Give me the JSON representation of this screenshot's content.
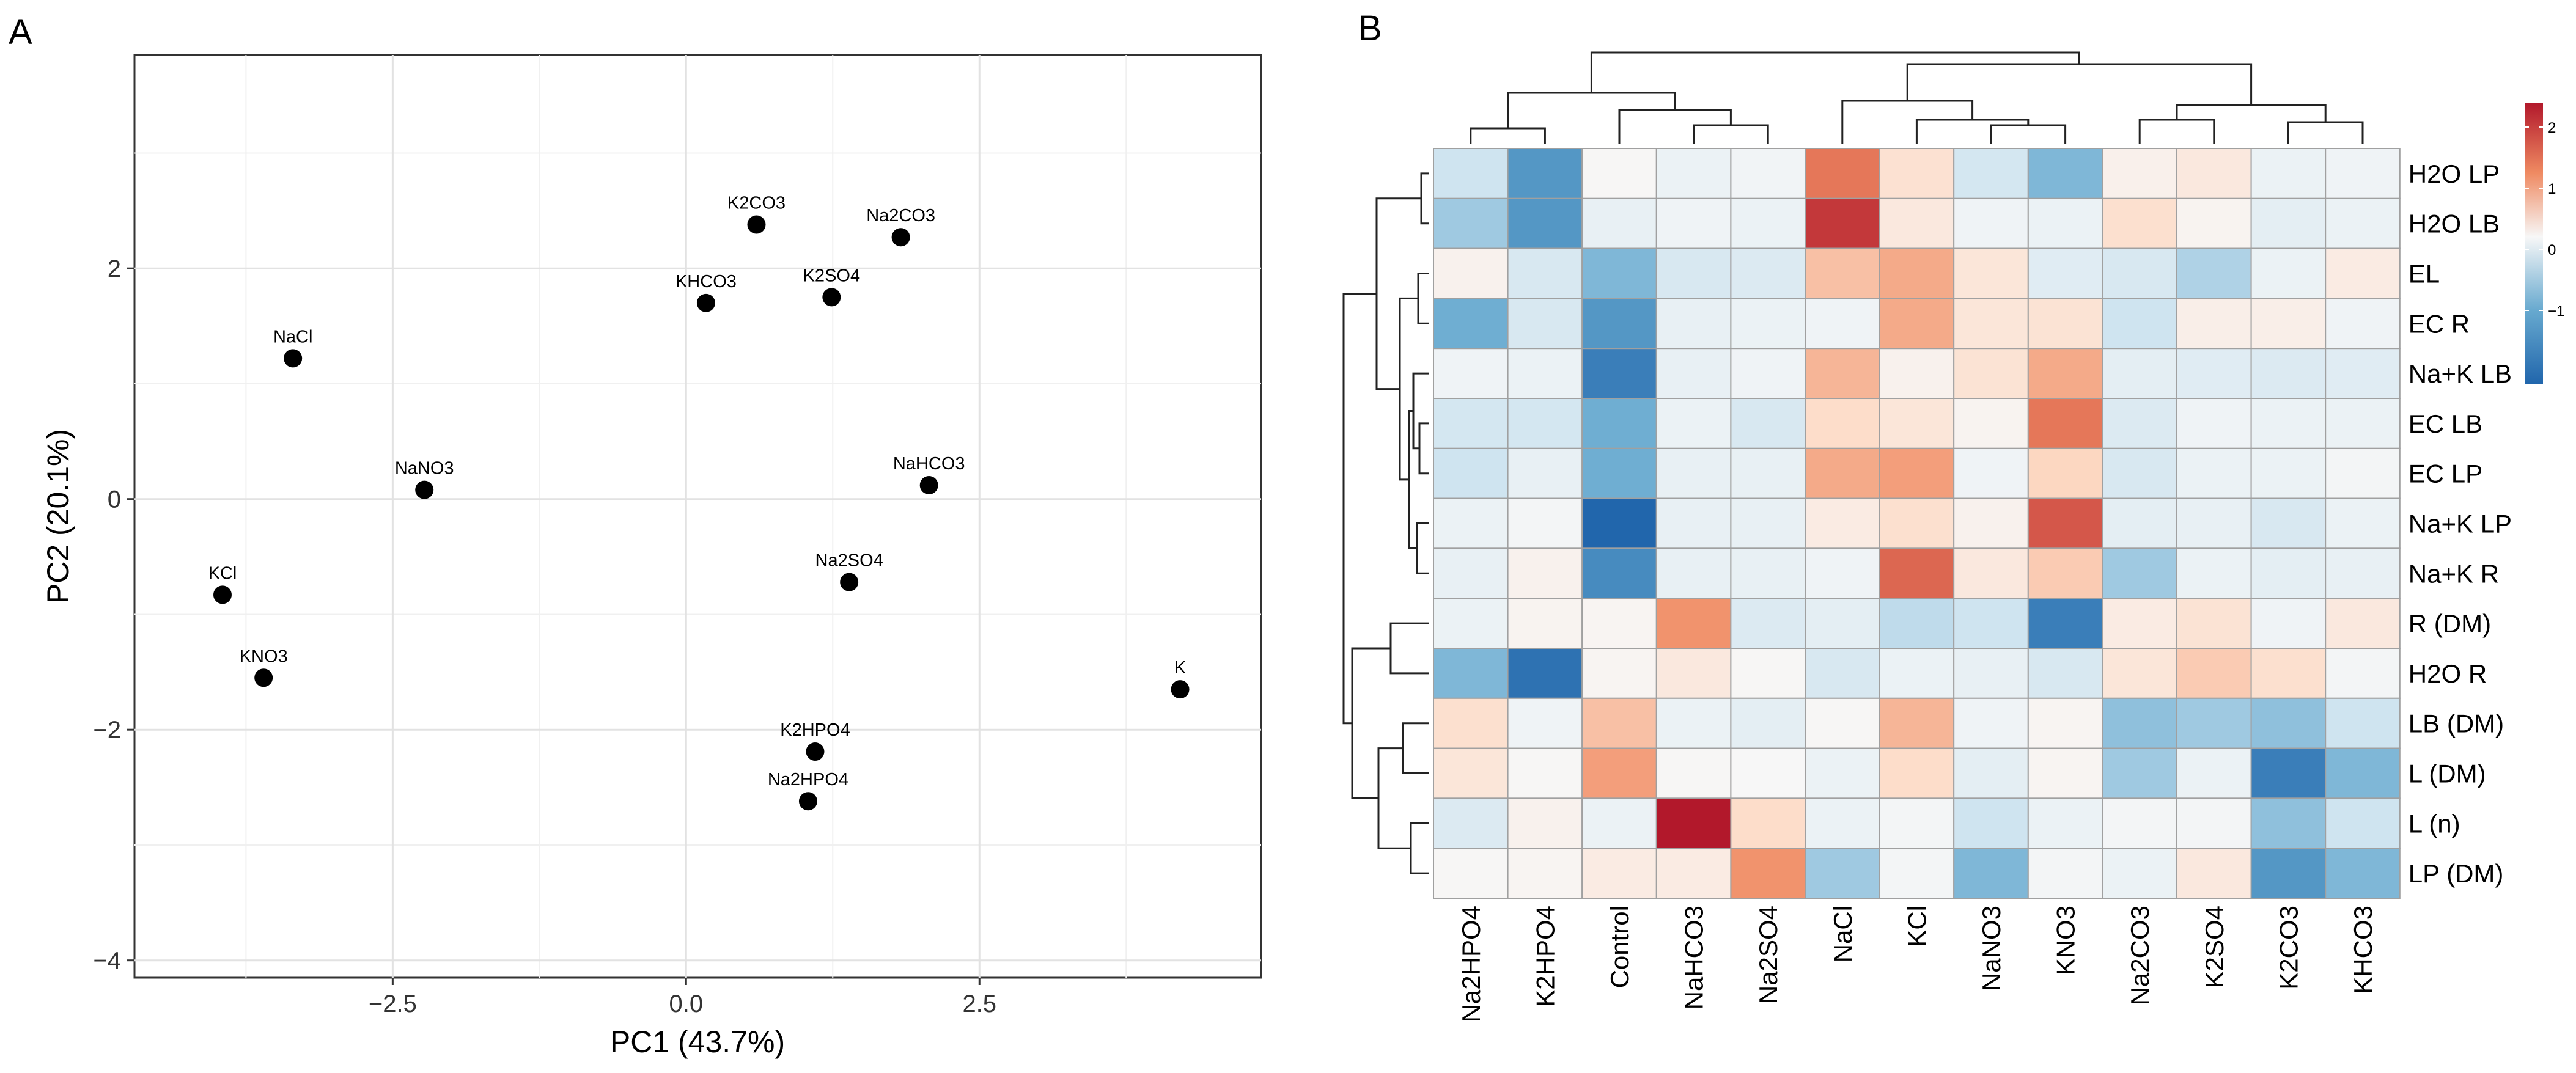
{
  "chart_data": [
    {
      "type": "scatter",
      "panel_label": "A",
      "title": "",
      "xlabel": "PC1 (43.7%)",
      "ylabel": "PC2 (20.1%)",
      "xlim": [
        -4.7,
        4.9
      ],
      "ylim": [
        -4.15,
        3.85
      ],
      "xticks": [
        -2.5,
        0.0,
        2.5
      ],
      "xtick_labels": [
        "−2.5",
        "0.0",
        "2.5"
      ],
      "yticks": [
        -4,
        -2,
        0,
        2
      ],
      "ytick_labels": [
        "−4",
        "−2",
        "0",
        "2"
      ],
      "grid": true,
      "points": [
        {
          "label": "K2CO3",
          "x": 0.6,
          "y": 2.38
        },
        {
          "label": "Na2CO3",
          "x": 1.83,
          "y": 2.27
        },
        {
          "label": "KHCO3",
          "x": 0.17,
          "y": 1.7
        },
        {
          "label": "K2SO4",
          "x": 1.24,
          "y": 1.75
        },
        {
          "label": "NaCl",
          "x": -3.35,
          "y": 1.22
        },
        {
          "label": "NaNO3",
          "x": -2.23,
          "y": 0.08
        },
        {
          "label": "NaHCO3",
          "x": 2.07,
          "y": 0.12
        },
        {
          "label": "KCl",
          "x": -3.95,
          "y": -0.83
        },
        {
          "label": "Na2SO4",
          "x": 1.39,
          "y": -0.72
        },
        {
          "label": "KNO3",
          "x": -3.6,
          "y": -1.55
        },
        {
          "label": "K",
          "x": 4.21,
          "y": -1.65
        },
        {
          "label": "K2HPO4",
          "x": 1.1,
          "y": -2.19
        },
        {
          "label": "Na2HPO4",
          "x": 1.04,
          "y": -2.62
        }
      ]
    },
    {
      "type": "heatmap",
      "panel_label": "B",
      "title": "",
      "columns": [
        "Na2HPO4",
        "K2HPO4",
        "Control",
        "NaHCO3",
        "Na2SO4",
        "NaCl",
        "KCl",
        "NaNO3",
        "KNO3",
        "Na2CO3",
        "K2SO4",
        "K2CO3",
        "KHCO3"
      ],
      "rows": [
        "H2O LP",
        "H2O LB",
        "EL",
        "EC R",
        "Na+K LB",
        "EC LB",
        "EC LP",
        "Na+K LP",
        "Na+K R",
        "R (DM)",
        "H2O R",
        "LB (DM)",
        "L (DM)",
        "L (n)",
        "LP (DM)"
      ],
      "values": [
        [
          -1.0,
          -1.8,
          0.05,
          -0.3,
          -0.15,
          1.8,
          0.75,
          -0.9,
          -1.5,
          0.25,
          0.5,
          -0.3,
          -0.2
        ],
        [
          -1.3,
          -1.8,
          -0.4,
          -0.2,
          -0.3,
          2.2,
          0.5,
          -0.2,
          -0.3,
          0.8,
          0.15,
          -0.5,
          -0.3
        ],
        [
          0.2,
          -0.8,
          -1.5,
          -0.8,
          -0.7,
          1.2,
          1.4,
          0.6,
          -0.6,
          -0.8,
          -1.2,
          -0.3,
          0.4
        ],
        [
          -1.6,
          -0.8,
          -1.8,
          -0.4,
          -0.3,
          -0.2,
          1.4,
          0.6,
          0.7,
          -1.0,
          0.3,
          0.3,
          -0.2
        ],
        [
          -0.2,
          -0.3,
          -2.0,
          -0.4,
          -0.2,
          1.3,
          0.2,
          0.7,
          1.4,
          -0.5,
          -0.6,
          -0.7,
          -0.6
        ],
        [
          -0.9,
          -0.9,
          -1.6,
          -0.3,
          -0.8,
          0.9,
          0.6,
          0.15,
          1.8,
          -0.7,
          -0.2,
          -0.3,
          -0.3
        ],
        [
          -1.0,
          -0.4,
          -1.6,
          -0.4,
          -0.4,
          1.4,
          1.5,
          -0.2,
          1.0,
          -0.8,
          -0.3,
          -0.3,
          -0.1
        ],
        [
          -0.3,
          -0.1,
          -2.2,
          -0.4,
          -0.4,
          0.4,
          0.8,
          0.2,
          2.0,
          -0.5,
          -0.4,
          -0.8,
          -0.3
        ],
        [
          -0.4,
          0.2,
          -1.9,
          -0.4,
          -0.4,
          -0.2,
          1.9,
          0.5,
          1.1,
          -1.3,
          -0.3,
          -0.5,
          -0.4
        ],
        [
          -0.3,
          0.15,
          0.1,
          1.6,
          -0.7,
          -0.5,
          -1.1,
          -1.0,
          -2.0,
          0.4,
          0.7,
          -0.2,
          0.5
        ],
        [
          -1.5,
          -2.1,
          0.1,
          0.5,
          0.05,
          -0.8,
          -0.3,
          -0.4,
          -0.8,
          0.6,
          1.1,
          0.8,
          -0.1
        ],
        [
          0.8,
          -0.2,
          1.2,
          -0.3,
          -0.5,
          0.05,
          1.3,
          -0.2,
          0.1,
          -1.4,
          -1.3,
          -1.4,
          -1.0
        ],
        [
          0.6,
          0.05,
          1.5,
          0.05,
          0.0,
          -0.3,
          0.9,
          -0.5,
          0.1,
          -1.3,
          -0.3,
          -2.0,
          -1.5
        ],
        [
          -0.7,
          0.2,
          -0.3,
          2.6,
          0.9,
          -0.3,
          -0.1,
          -1.0,
          -0.3,
          -0.1,
          -0.1,
          -1.4,
          -1.0
        ],
        [
          0.05,
          0.1,
          0.4,
          0.4,
          1.6,
          -1.3,
          -0.1,
          -1.5,
          -0.1,
          -0.3,
          0.5,
          -1.8,
          -1.5
        ]
      ],
      "color_scale": {
        "min_color": "#2166ac",
        "mid_color": "#f7f7f7",
        "max_color": "#b2182b",
        "range": [
          -2.2,
          2.4
        ]
      },
      "legend_ticks": [
        2,
        1,
        0,
        -1
      ],
      "legend_tick_labels": [
        "2",
        "1",
        "0",
        "−1"
      ],
      "legend_position": "right",
      "column_dendrogram": true,
      "row_dendrogram": true
    }
  ]
}
